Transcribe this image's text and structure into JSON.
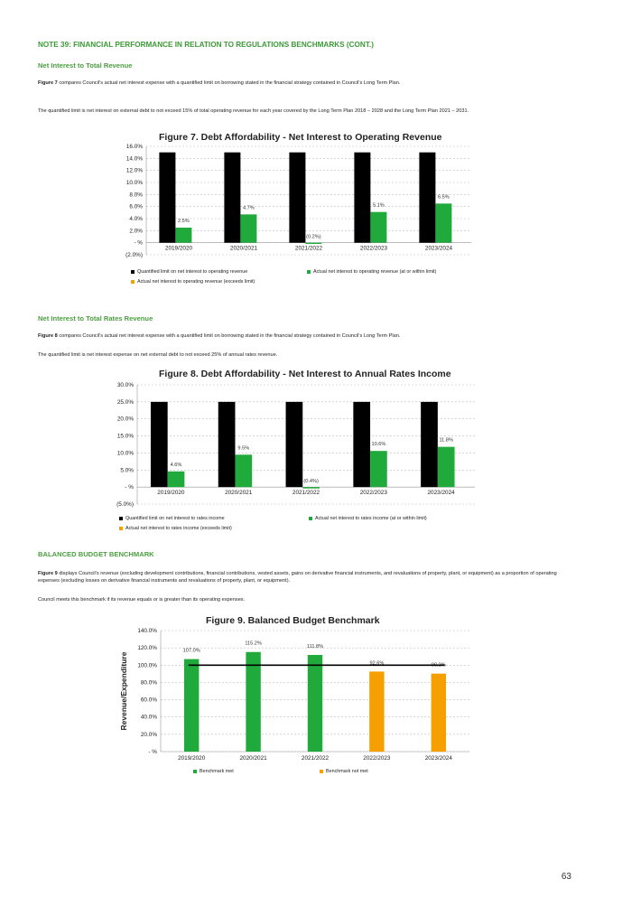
{
  "page": {
    "heading": "NOTE 39: FINANCIAL PERFORMANCE IN RELATION TO REGULATIONS BENCHMARKS (CONT.)",
    "page_number": "63"
  },
  "section1": {
    "title": "Net Interest to Total Revenue",
    "p1_bold": "Figure 7",
    "p1_rest": " compares Council’s actual net interest expense with a quantified limit on borrowing stated in the financial strategy contained in Council’s Long Term Plan.",
    "p2": "The quantified limit is net interest on external debt to not exceed 15% of total operating revenue for each year covered by the Long Term Plan 2018 – 2028 and the Long Term Plan 2021 – 2031."
  },
  "section2": {
    "title": "Net Interest to Total Rates Revenue",
    "p1_bold": "Figure 8",
    "p1_rest": " compares Council’s actual net interest expense with a quantified limit on borrowing stated in the financial strategy contained in Council’s Long Term Plan.",
    "p2": "The quantified limit is net interest expense on net external debt to not exceed 25% of annual rates revenue."
  },
  "section3": {
    "title": "BALANCED BUDGET BENCHMARK",
    "p1_bold": "Figure 9",
    "p1_rest": " displays Council’s revenue (excluding development contributions, financial contributions, vested assets, gains on derivative financial instruments, and revaluations of property, plant, or equipment) as a proportion of operating expenses (excluding losses on derivative financial instruments and revaluations of property, plant, or equipment).",
    "p2": "Council meets this benchmark if its revenue equals or is greater than its operating expenses."
  },
  "colors": {
    "black": "#000000",
    "green": "#1faa3b",
    "orange": "#f5a000",
    "heading_green": "#3b9b35"
  },
  "chart_data": [
    {
      "type": "bar",
      "title": "Figure 7. Debt Affordability - Net Interest to Operating Revenue",
      "categories": [
        "2019/2020",
        "2020/2021",
        "2021/2022",
        "2022/2023",
        "2023/2024"
      ],
      "series": [
        {
          "name": "Quantified limit on net interest to operating revenue",
          "values": [
            15,
            15,
            15,
            15,
            15
          ],
          "color": "#000000"
        },
        {
          "name": "Actual net interest to operating revenue (at or within limit)",
          "values": [
            2.5,
            4.7,
            -0.2,
            5.1,
            6.5
          ],
          "color": "#1faa3b",
          "labels": [
            "2.5%",
            "4.7%",
            "(0.2%)",
            "5.1%",
            "6.5%"
          ]
        },
        {
          "name": "Actual net interest to operating revenue (exceeds limit)",
          "values": [
            0,
            0,
            0,
            0,
            0
          ],
          "color": "#f5a000"
        }
      ],
      "ylim": [
        -2,
        16
      ],
      "yticks": [
        16,
        14,
        12,
        10,
        8,
        6,
        4,
        2,
        0,
        -2
      ],
      "ytick_labels": [
        "16.0%",
        "14.0%",
        "12.0%",
        "10.0%",
        "8.0%",
        "6.0%",
        "4.0%",
        "2.0%",
        "-  %",
        "(2.0%)"
      ],
      "grid": true,
      "legend": "bottom"
    },
    {
      "type": "bar",
      "title": "Figure 8. Debt Affordability - Net Interest to Annual Rates Income",
      "categories": [
        "2019/2020",
        "2020/2021",
        "2021/2022",
        "2022/2023",
        "2023/2024"
      ],
      "series": [
        {
          "name": "Quantified limit on net interest to rates income",
          "values": [
            25,
            25,
            25,
            25,
            25
          ],
          "color": "#000000"
        },
        {
          "name": "Actual net interest to rates income (at or within limit)",
          "values": [
            4.6,
            9.5,
            -0.4,
            10.6,
            11.8
          ],
          "color": "#1faa3b",
          "labels": [
            "4.6%",
            "9.5%",
            "(0.4%)",
            "10.6%",
            "11.8%"
          ]
        },
        {
          "name": "Actual net interest to rates income (exceeds limit)",
          "values": [
            0,
            0,
            0,
            0,
            0
          ],
          "color": "#f5a000"
        }
      ],
      "ylim": [
        -5,
        30
      ],
      "yticks": [
        30,
        25,
        20,
        15,
        10,
        5,
        0,
        -5
      ],
      "ytick_labels": [
        "30.0%",
        "25.0%",
        "20.0%",
        "15.0%",
        "10.0%",
        "5.0%",
        "-  %",
        "(5.0%)"
      ],
      "grid": true,
      "legend": "bottom"
    },
    {
      "type": "bar",
      "title": "Figure 9. Balanced Budget Benchmark",
      "ylabel": "Revenue/Expenditure",
      "categories": [
        "2019/2020",
        "2020/2021",
        "2021/2022",
        "2022/2023",
        "2023/2024"
      ],
      "values": [
        107.0,
        115.2,
        111.8,
        92.6,
        90.2
      ],
      "labels": [
        "107.0%",
        "115.2%",
        "111.8%",
        "92.6%",
        "90.2%"
      ],
      "bar_colors": [
        "#1faa3b",
        "#1faa3b",
        "#1faa3b",
        "#f5a000",
        "#f5a000"
      ],
      "benchmark": 100,
      "series": [
        {
          "name": "Benchmark met",
          "color": "#1faa3b"
        },
        {
          "name": "Benchmark not met",
          "color": "#f5a000"
        }
      ],
      "ylim": [
        0,
        140
      ],
      "yticks": [
        140,
        120,
        100,
        80,
        60,
        40,
        20,
        0
      ],
      "ytick_labels": [
        "140.0%",
        "120.0%",
        "100.0%",
        "80.0%",
        "60.0%",
        "40.0%",
        "20.0%",
        "-  %"
      ],
      "grid": true,
      "legend": "bottom"
    }
  ]
}
